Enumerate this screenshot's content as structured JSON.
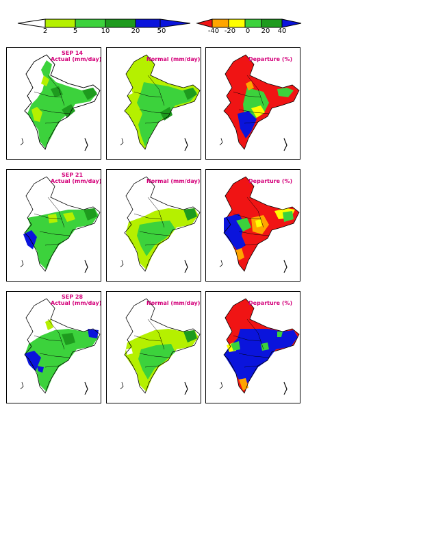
{
  "colorbar_actual": {
    "ticks": [
      "2",
      "5",
      "10",
      "20",
      "50"
    ],
    "colors": [
      "#ffffff",
      "#b5f000",
      "#3cd23c",
      "#1e9b1e",
      "#0a14dc"
    ]
  },
  "colorbar_departure": {
    "ticks": [
      "-40",
      "-20",
      "0",
      "20",
      "40"
    ],
    "colors": [
      "#f01414",
      "#ffa500",
      "#ffff00",
      "#3cd23c",
      "#1e9b1e",
      "#0a14dc"
    ]
  },
  "rows": [
    {
      "date": "SEP 14",
      "actual_label": "Actual (mm/day)",
      "normal_label": "Normal (mm/day)",
      "departure_label": "Departure (%)"
    },
    {
      "date": "SEP 21",
      "actual_label": "Actual (mm/day)",
      "normal_label": "Normal (mm/day)",
      "departure_label": "Departure (%)"
    },
    {
      "date": "SEP 28",
      "actual_label": "Actual (mm/day)",
      "normal_label": "Normal (mm/day)",
      "departure_label": "Departure (%)"
    }
  ],
  "colors": {
    "title_text": "#d4007a",
    "white": "#ffffff",
    "light_green": "#b5f000",
    "green": "#3cd23c",
    "dark_green": "#1e9b1e",
    "blue": "#0a14dc",
    "red": "#f01414",
    "orange": "#ffa500",
    "yellow": "#ffff00"
  }
}
